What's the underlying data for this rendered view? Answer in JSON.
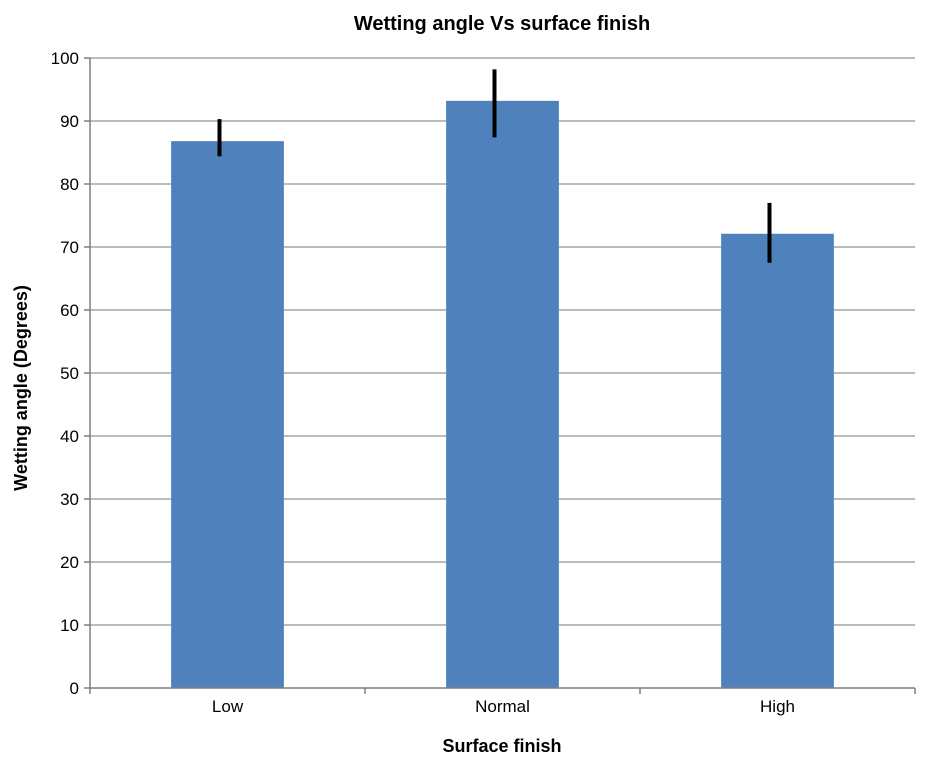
{
  "chart_data": {
    "type": "bar",
    "title": "Wetting angle Vs surface finish",
    "xlabel": "Surface finish",
    "ylabel": "Wetting angle (Degrees)",
    "categories": [
      "Low",
      "Normal",
      "High"
    ],
    "values": [
      86.8,
      93.2,
      72.1
    ],
    "error_low": [
      84.4,
      87.4,
      67.5
    ],
    "error_high": [
      90.3,
      98.2,
      77.0
    ],
    "ylim": [
      0,
      100
    ],
    "yticks": [
      0,
      10,
      20,
      30,
      40,
      50,
      60,
      70,
      80,
      90,
      100
    ],
    "grid": true,
    "legend": "none",
    "colors": {
      "bar": "#4f81bd",
      "error_bar": "#000000",
      "grid": "#a6a6a6",
      "axis": "#7f7f7f"
    }
  }
}
